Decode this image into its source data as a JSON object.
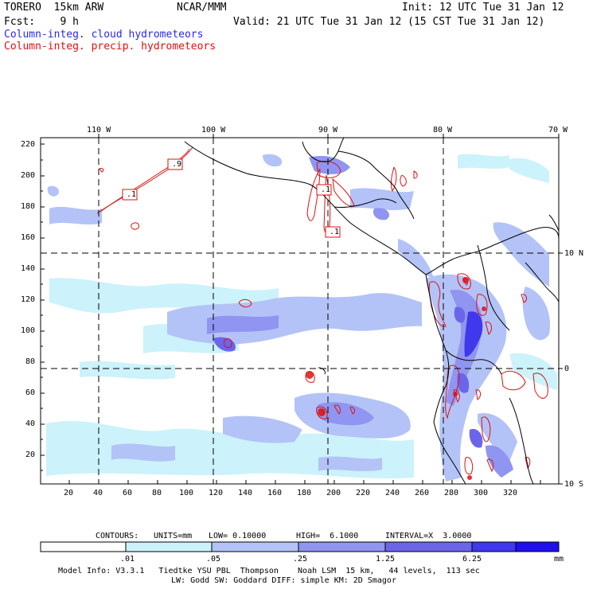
{
  "header": {
    "run": "TORERO  15km ARW",
    "org": "NCAR/MMM",
    "init": "Init: 12 UTC Tue 31 Jan 12",
    "fcst": "Fcst:    9 h",
    "valid": "Valid: 21 UTC Tue 31 Jan 12 (15 CST Tue 31 Jan 12)",
    "field1": "Column-integ. cloud hydrometeors",
    "field2": "Column-integ. precip. hydrometeors"
  },
  "axes": {
    "lon_labels": [
      "110 W",
      "100 W",
      "90 W",
      "80 W",
      "70 W"
    ],
    "lat_labels": [
      "10 N",
      "0",
      "10 S"
    ],
    "y_ticks": [
      "220",
      "200",
      "180",
      "160",
      "140",
      "120",
      "100",
      "80",
      "60",
      "40",
      "20"
    ],
    "x_ticks": [
      "20",
      "40",
      "60",
      "80",
      "100",
      "120",
      "140",
      "160",
      "180",
      "200",
      "220",
      "240",
      "260",
      "280",
      "300",
      "320"
    ]
  },
  "contour_labels": [
    ".9",
    ".1",
    ".1",
    ".1"
  ],
  "contour_info": {
    "contours": "CONTOURS:",
    "units": "UNITS=mm",
    "low": "LOW= 0.10000",
    "high": "HIGH=  6.1000",
    "interval": "INTERVAL=X  3.0000"
  },
  "colorbar": {
    "labels": [
      ".01",
      ".05",
      ".25",
      "1.25",
      "6.25"
    ],
    "unit": "mm",
    "colors": [
      "#ffffff",
      "#ccf2fb",
      "#b3c3f7",
      "#8f95f0",
      "#6b66e9",
      "#3f38ec",
      "#1f10ea"
    ]
  },
  "footer": {
    "line1": "Model Info: V3.3.1   Tiedtke YSU PBL  Thompson    Noah LSM  15 km,   44 levels,  113 sec",
    "line2": "LW: Godd SW: Goddard DIFF: simple KM: 2D Smagor"
  },
  "colors": {
    "cloud": "#2a2ae0",
    "precip": "#e01010"
  }
}
